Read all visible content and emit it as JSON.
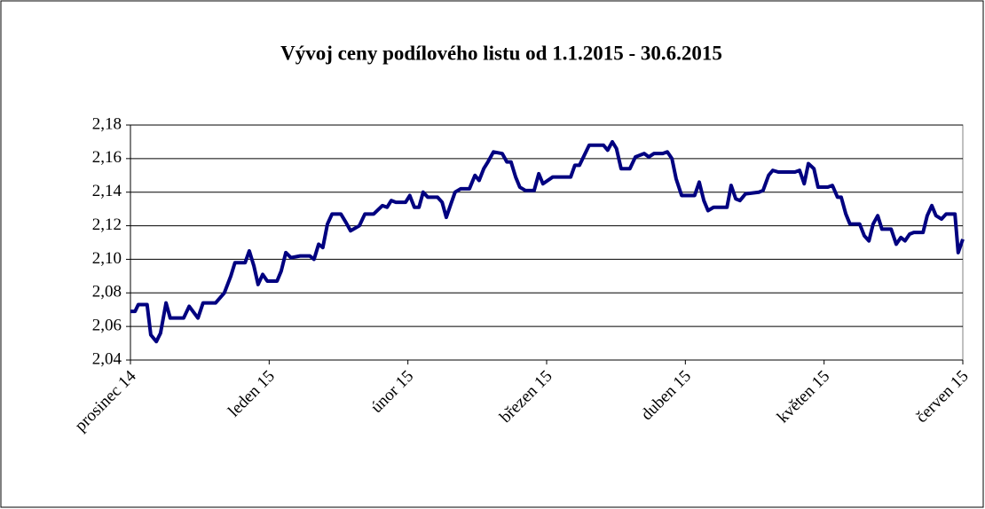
{
  "chart_data": {
    "type": "line",
    "title": "Vývoj ceny podílového listu od 1.1.2015 - 30.6.2015",
    "x": [
      0,
      1.0,
      1.7,
      3.6,
      4.4,
      5.6,
      6.5,
      7.7,
      8.6,
      11.5,
      12.7,
      14.6,
      15.7,
      18.4,
      20.3,
      21.7,
      22.6,
      24.8,
      25.7,
      26.7,
      27.6,
      28.6,
      29.6,
      31.7,
      32.6,
      33.6,
      34.7,
      36.7,
      38.8,
      39.7,
      40.7,
      41.6,
      42.6,
      43.6,
      45.5,
      46.6,
      47.6,
      49.5,
      50.7,
      52.6,
      54.5,
      55.5,
      56.4,
      57.4,
      59.5,
      60.4,
      61.4,
      62.4,
      63.3,
      64.3,
      66.4,
      67.4,
      68.3,
      69.3,
      70.2,
      71.4,
      73.3,
      74.5,
      75.4,
      76.4,
      77.3,
      78.5,
      80.4,
      81.4,
      82.3,
      83.3,
      84.2,
      85.4,
      87.3,
      88.3,
      89.2,
      91.3,
      95.2,
      96.1,
      97.1,
      99.2,
      102.3,
      103.2,
      104.2,
      105.1,
      106.1,
      108.0,
      109.2,
      111.1,
      112.1,
      113.2,
      115.1,
      116.1,
      117.1,
      118.0,
      119.2,
      122.0,
      123.0,
      124.0,
      124.9,
      126.1,
      129.0,
      129.9,
      130.9,
      131.8,
      133.0,
      135.9,
      136.8,
      138.0,
      138.9,
      140.1,
      143.7,
      144.7,
      145.7,
      146.6,
      147.8,
      148.7,
      150.8,
      151.8,
      152.9,
      153.7,
      154.7,
      155.6,
      157.7,
      158.7,
      159.7,
      160.6,
      161.6,
      162.5,
      164.5,
      165.6,
      166.6,
      167.5,
      168.5,
      169.4,
      171.4,
      172.3,
      173.3,
      174.2,
      175.4,
      176.4,
      178.3,
      179.0,
      180.0
    ],
    "series": [
      {
        "color": "#000080",
        "values": [
          2.069,
          2.069,
          2.073,
          2.073,
          2.055,
          2.051,
          2.056,
          2.074,
          2.065,
          2.065,
          2.072,
          2.065,
          2.074,
          2.074,
          2.08,
          2.09,
          2.098,
          2.098,
          2.105,
          2.096,
          2.085,
          2.091,
          2.087,
          2.087,
          2.093,
          2.104,
          2.101,
          2.102,
          2.102,
          2.1,
          2.109,
          2.107,
          2.121,
          2.127,
          2.127,
          2.122,
          2.117,
          2.12,
          2.127,
          2.127,
          2.132,
          2.131,
          2.135,
          2.134,
          2.134,
          2.138,
          2.131,
          2.131,
          2.14,
          2.137,
          2.137,
          2.134,
          2.125,
          2.133,
          2.14,
          2.142,
          2.142,
          2.15,
          2.147,
          2.154,
          2.158,
          2.164,
          2.163,
          2.158,
          2.158,
          2.149,
          2.143,
          2.141,
          2.141,
          2.151,
          2.145,
          2.149,
          2.149,
          2.156,
          2.156,
          2.168,
          2.168,
          2.165,
          2.17,
          2.166,
          2.154,
          2.154,
          2.161,
          2.163,
          2.161,
          2.163,
          2.163,
          2.164,
          2.16,
          2.148,
          2.138,
          2.138,
          2.146,
          2.135,
          2.129,
          2.131,
          2.131,
          2.144,
          2.136,
          2.135,
          2.139,
          2.14,
          2.141,
          2.15,
          2.153,
          2.152,
          2.152,
          2.153,
          2.145,
          2.157,
          2.154,
          2.143,
          2.143,
          2.144,
          2.137,
          2.137,
          2.127,
          2.121,
          2.121,
          2.114,
          2.111,
          2.121,
          2.126,
          2.118,
          2.118,
          2.109,
          2.113,
          2.111,
          2.115,
          2.116,
          2.116,
          2.126,
          2.132,
          2.126,
          2.124,
          2.127,
          2.127,
          2.104,
          2.112
        ]
      }
    ],
    "xlim": [
      0,
      180
    ],
    "xticks": [
      {
        "value": 0,
        "label": "prosinec 14"
      },
      {
        "value": 30,
        "label": "leden 15"
      },
      {
        "value": 60,
        "label": "únor 15"
      },
      {
        "value": 90,
        "label": "březen 15"
      },
      {
        "value": 120,
        "label": "duben 15"
      },
      {
        "value": 150,
        "label": "květen 15"
      },
      {
        "value": 180,
        "label": "červen 15"
      }
    ],
    "ylim": [
      2.04,
      2.18
    ],
    "yticks": [
      {
        "value": 2.04,
        "label": "2,04"
      },
      {
        "value": 2.06,
        "label": "2,06"
      },
      {
        "value": 2.08,
        "label": "2,08"
      },
      {
        "value": 2.1,
        "label": "2,10"
      },
      {
        "value": 2.12,
        "label": "2,12"
      },
      {
        "value": 2.14,
        "label": "2,14"
      },
      {
        "value": 2.16,
        "label": "2,16"
      },
      {
        "value": 2.18,
        "label": "2,18"
      }
    ],
    "grid": true
  }
}
